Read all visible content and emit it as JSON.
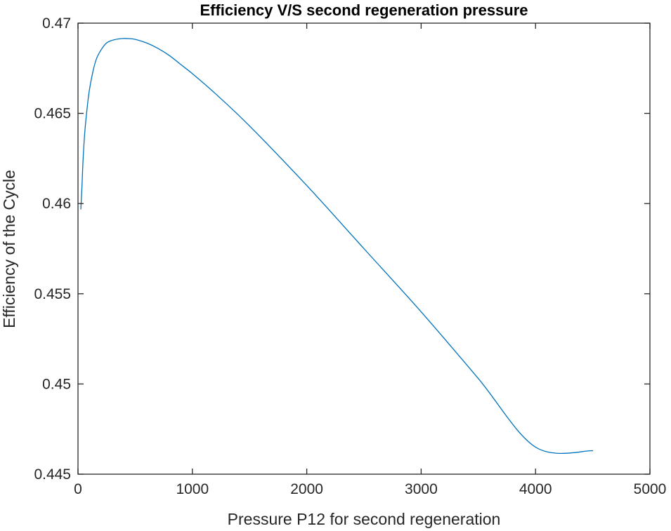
{
  "chart_data": {
    "type": "line",
    "title": "Efficiency V/S second regeneration pressure",
    "xlabel": "Pressure P12 for second regeneration",
    "ylabel": "Efficiency of the Cycle",
    "xlim": [
      0,
      5000
    ],
    "ylim": [
      0.445,
      0.47
    ],
    "xticks": [
      0,
      1000,
      2000,
      3000,
      4000,
      5000
    ],
    "xtick_labels": [
      "0",
      "1000",
      "2000",
      "3000",
      "4000",
      "5000"
    ],
    "yticks": [
      0.445,
      0.45,
      0.455,
      0.46,
      0.465,
      0.47
    ],
    "ytick_labels": [
      "0.445",
      "0.45",
      "0.455",
      "0.46",
      "0.465",
      "0.47"
    ],
    "grid": false,
    "series": [
      {
        "name": "Efficiency",
        "color": "#0072BD",
        "x": [
          25,
          35,
          45,
          60,
          80,
          100,
          130,
          160,
          200,
          250,
          300,
          350,
          400,
          450,
          500,
          600,
          700,
          800,
          900,
          1000,
          1200,
          1500,
          2000,
          2500,
          3000,
          3500,
          4000,
          4500
        ],
        "y": [
          0.4597,
          0.461,
          0.4625,
          0.464,
          0.4653,
          0.4663,
          0.4673,
          0.468,
          0.4685,
          0.4689,
          0.46905,
          0.46912,
          0.46915,
          0.46914,
          0.4691,
          0.4689,
          0.4686,
          0.4682,
          0.4677,
          0.4672,
          0.4661,
          0.4643,
          0.461,
          0.4575,
          0.454,
          0.4503,
          0.4465,
          0.4463
        ]
      }
    ]
  }
}
